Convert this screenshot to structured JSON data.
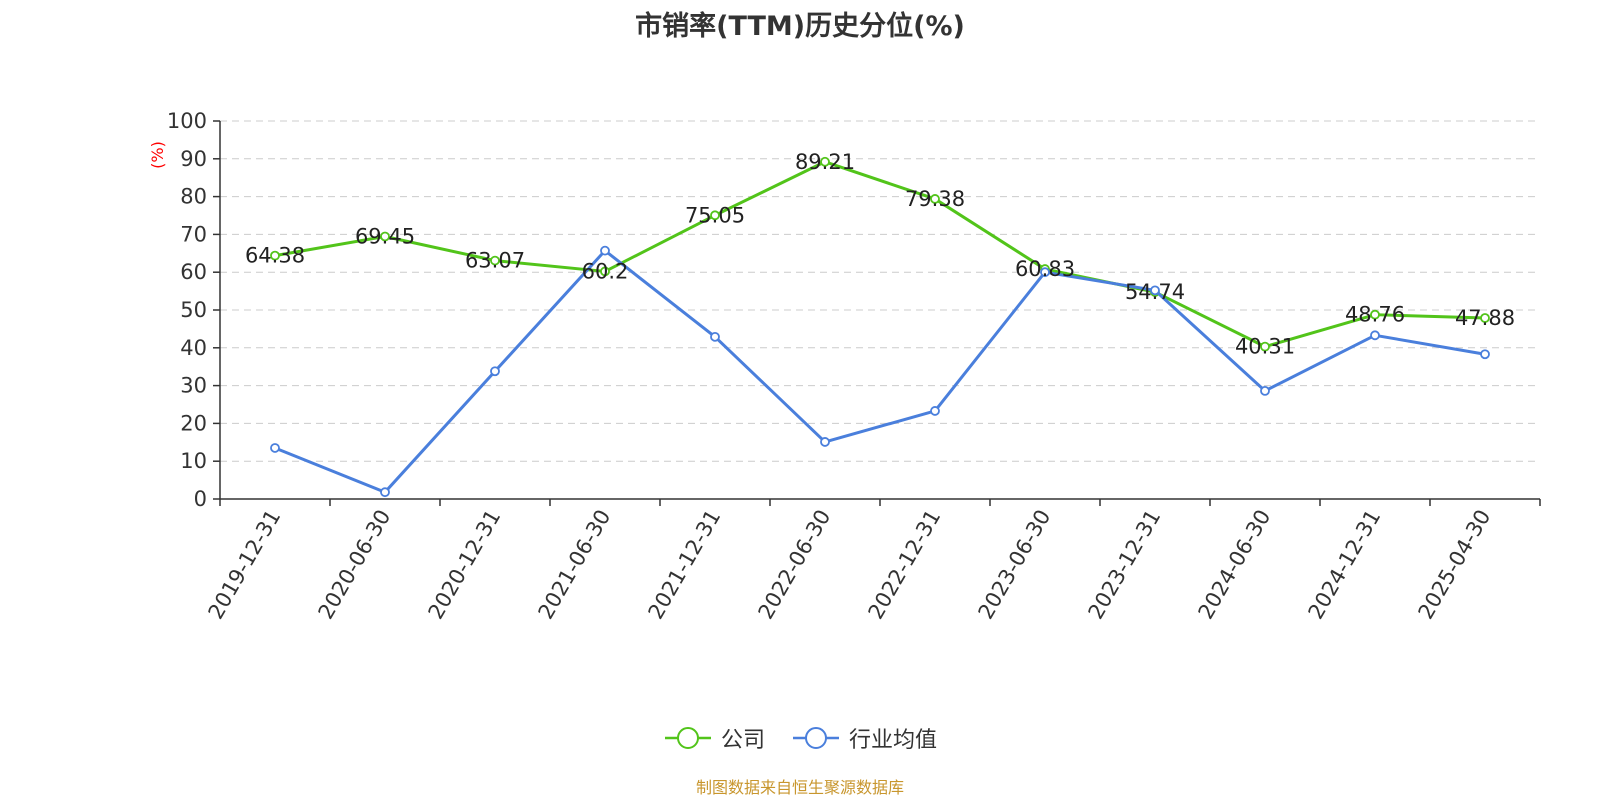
{
  "chart_data": {
    "type": "line",
    "title": "市销率(TTM)历史分位(%)",
    "ylabel": "(%)",
    "xlabel": "",
    "ylim": [
      0,
      100
    ],
    "yticks": [
      0,
      10,
      20,
      30,
      40,
      50,
      60,
      70,
      80,
      90,
      100
    ],
    "grid": true,
    "legend_position": "bottom-center",
    "categories": [
      "2019-12-31",
      "2020-06-30",
      "2020-12-31",
      "2021-06-30",
      "2021-12-31",
      "2022-06-30",
      "2022-12-31",
      "2023-06-30",
      "2023-12-31",
      "2024-06-30",
      "2024-12-31",
      "2025-04-30"
    ],
    "series": [
      {
        "name": "公司",
        "color": "#52c41a",
        "values": [
          64.38,
          69.45,
          63.07,
          60.2,
          75.05,
          89.21,
          79.38,
          60.83,
          54.74,
          40.31,
          48.76,
          47.88
        ],
        "labels": [
          "64.38",
          "69.45",
          "63.07",
          "60.2",
          "75.05",
          "89.21",
          "79.38",
          "60.83",
          "54.74",
          "40.31",
          "48.76",
          "47.88"
        ]
      },
      {
        "name": "行业均值",
        "color": "#4a7fdc",
        "values": [
          13.5,
          1.8,
          33.8,
          65.7,
          42.9,
          15.1,
          23.3,
          60.0,
          55.2,
          28.6,
          43.3,
          38.3
        ]
      }
    ]
  },
  "footer": {
    "source": "制图数据来自恒生聚源数据库"
  },
  "colors": {
    "axis": "#333333",
    "grid": "#cccccc",
    "ylabel": "#ff0000",
    "source": "#c8962d"
  }
}
